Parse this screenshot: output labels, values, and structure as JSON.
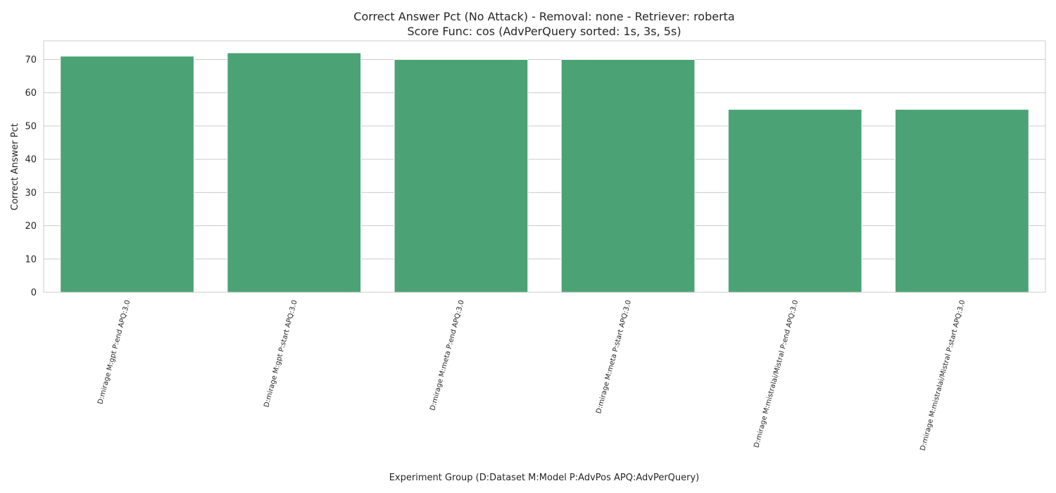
{
  "chart_data": {
    "type": "bar",
    "title": "Correct Answer Pct (No Attack) - Removal: none - Retriever: roberta",
    "subtitle": "Score Func: cos (AdvPerQuery sorted: 1s, 3s, 5s)",
    "xlabel": "Experiment Group (D:Dataset M:Model P:AdvPos APQ:AdvPerQuery)",
    "ylabel": "Correct Answer Pct",
    "categories": [
      "D:mirage M:gpt P:end APQ:3.0",
      "D:mirage M:gpt P:start APQ:3.0",
      "D:mirage M:meta P:end APQ:3.0",
      "D:mirage M:meta P:start APQ:3.0",
      "D:mirage M:mistralai/Mistral P:end APQ:3.0",
      "D:mirage M:mistralai/Mistral P:start APQ:3.0"
    ],
    "values": [
      71,
      72,
      70,
      70,
      55,
      55
    ],
    "ylim": [
      0,
      75.6
    ],
    "yticks": [
      0,
      10,
      20,
      30,
      40,
      50,
      60,
      70
    ],
    "grid": true,
    "bar_color": "#4ba375",
    "grid_color": "#cccccc"
  }
}
